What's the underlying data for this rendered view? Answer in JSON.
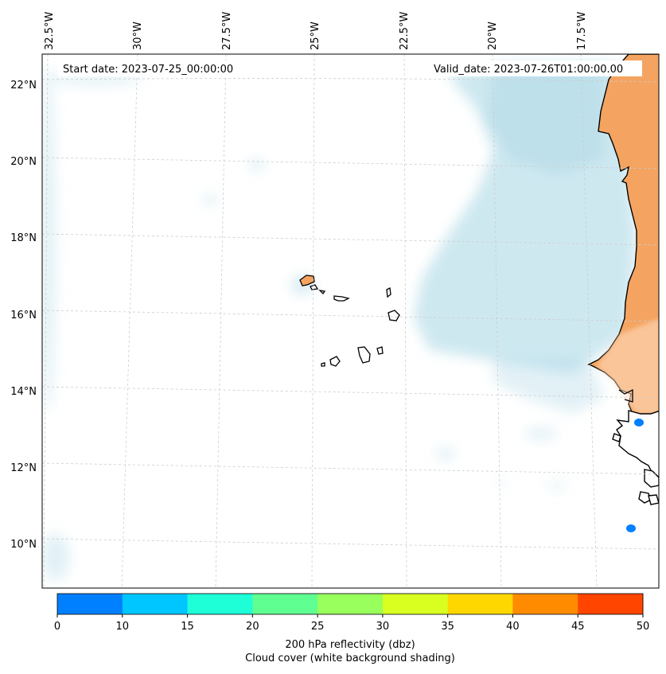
{
  "map": {
    "region": "Eastern tropical Atlantic, Cape Verde islands and West African coast",
    "start_date_label": "Start date: 2023-07-25_00:00:00",
    "valid_date_label": "Valid_date: 2023-07-26T01:00:00.00",
    "lon_labels": [
      "32.5°W",
      "30°W",
      "27.5°W",
      "25°W",
      "22.5°W",
      "20°W",
      "17.5°W"
    ],
    "lat_labels": [
      "22°N",
      "20°N",
      "18°N",
      "16°N",
      "14°N",
      "12°N",
      "10°N"
    ],
    "colors": {
      "land": "#f4a460",
      "cloud": "#add8e6",
      "coast": "#000000",
      "grid": "#cccccc",
      "reflectivity_low": "#007fff"
    }
  },
  "colorbar": {
    "ticks": [
      "0",
      "10",
      "15",
      "20",
      "25",
      "30",
      "35",
      "40",
      "45",
      "50"
    ],
    "colors": [
      "#007fff",
      "#00c6ff",
      "#1effd8",
      "#5fff92",
      "#98ff5c",
      "#d8ff20",
      "#ffd700",
      "#ff8c00",
      "#ff4500"
    ],
    "label_line1": "200 hPa reflectivity (dbz)",
    "label_line2": "Cloud cover (white background shading)"
  }
}
